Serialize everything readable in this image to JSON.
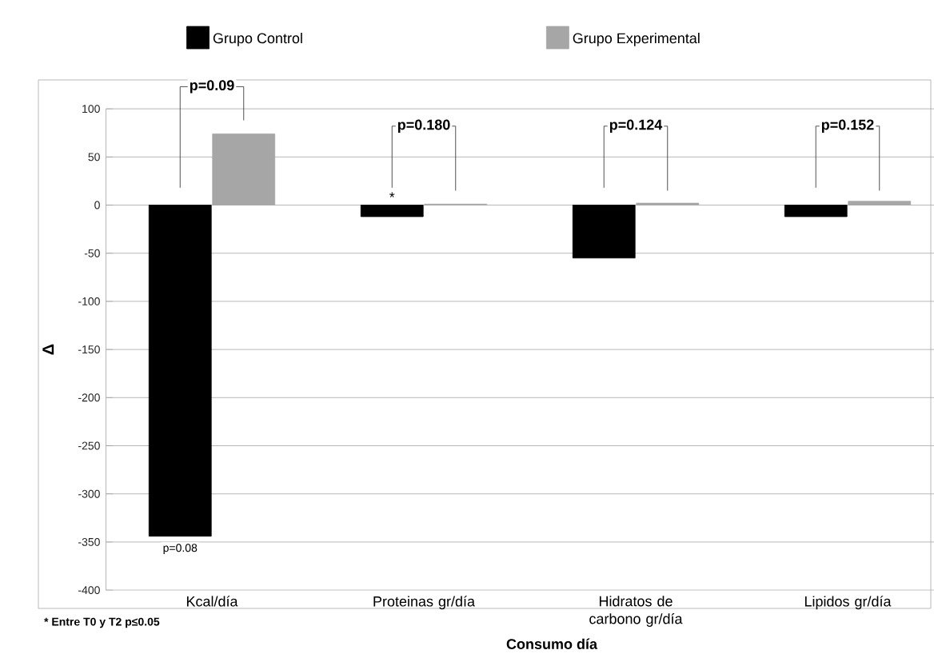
{
  "chart_data": {
    "type": "bar",
    "xlabel": "Consumo día",
    "ylabel": "Δ",
    "categories": [
      "Kcal/día",
      "Proteinas gr/día",
      "Hidratos de carbono gr/día",
      "Lipidos gr/día"
    ],
    "series": [
      {
        "name": "Grupo Control",
        "color": "#000000",
        "values": [
          -344,
          -12,
          -55,
          -12
        ]
      },
      {
        "name": "Grupo Experimental",
        "color": "#a6a6a6",
        "values": [
          74,
          1,
          2,
          4
        ]
      }
    ],
    "ylim": [
      -400,
      100
    ],
    "yticks": [
      -400,
      -350,
      -300,
      -250,
      -200,
      -150,
      -100,
      -50,
      0,
      50,
      100
    ],
    "grid": "y",
    "legend": "top",
    "annotations": [
      "p=0.09",
      "p=0.180",
      "p=0.124",
      "p=0.152",
      "p=0.08",
      "*",
      "* Entre T0 y T2 p≤0.05"
    ]
  }
}
